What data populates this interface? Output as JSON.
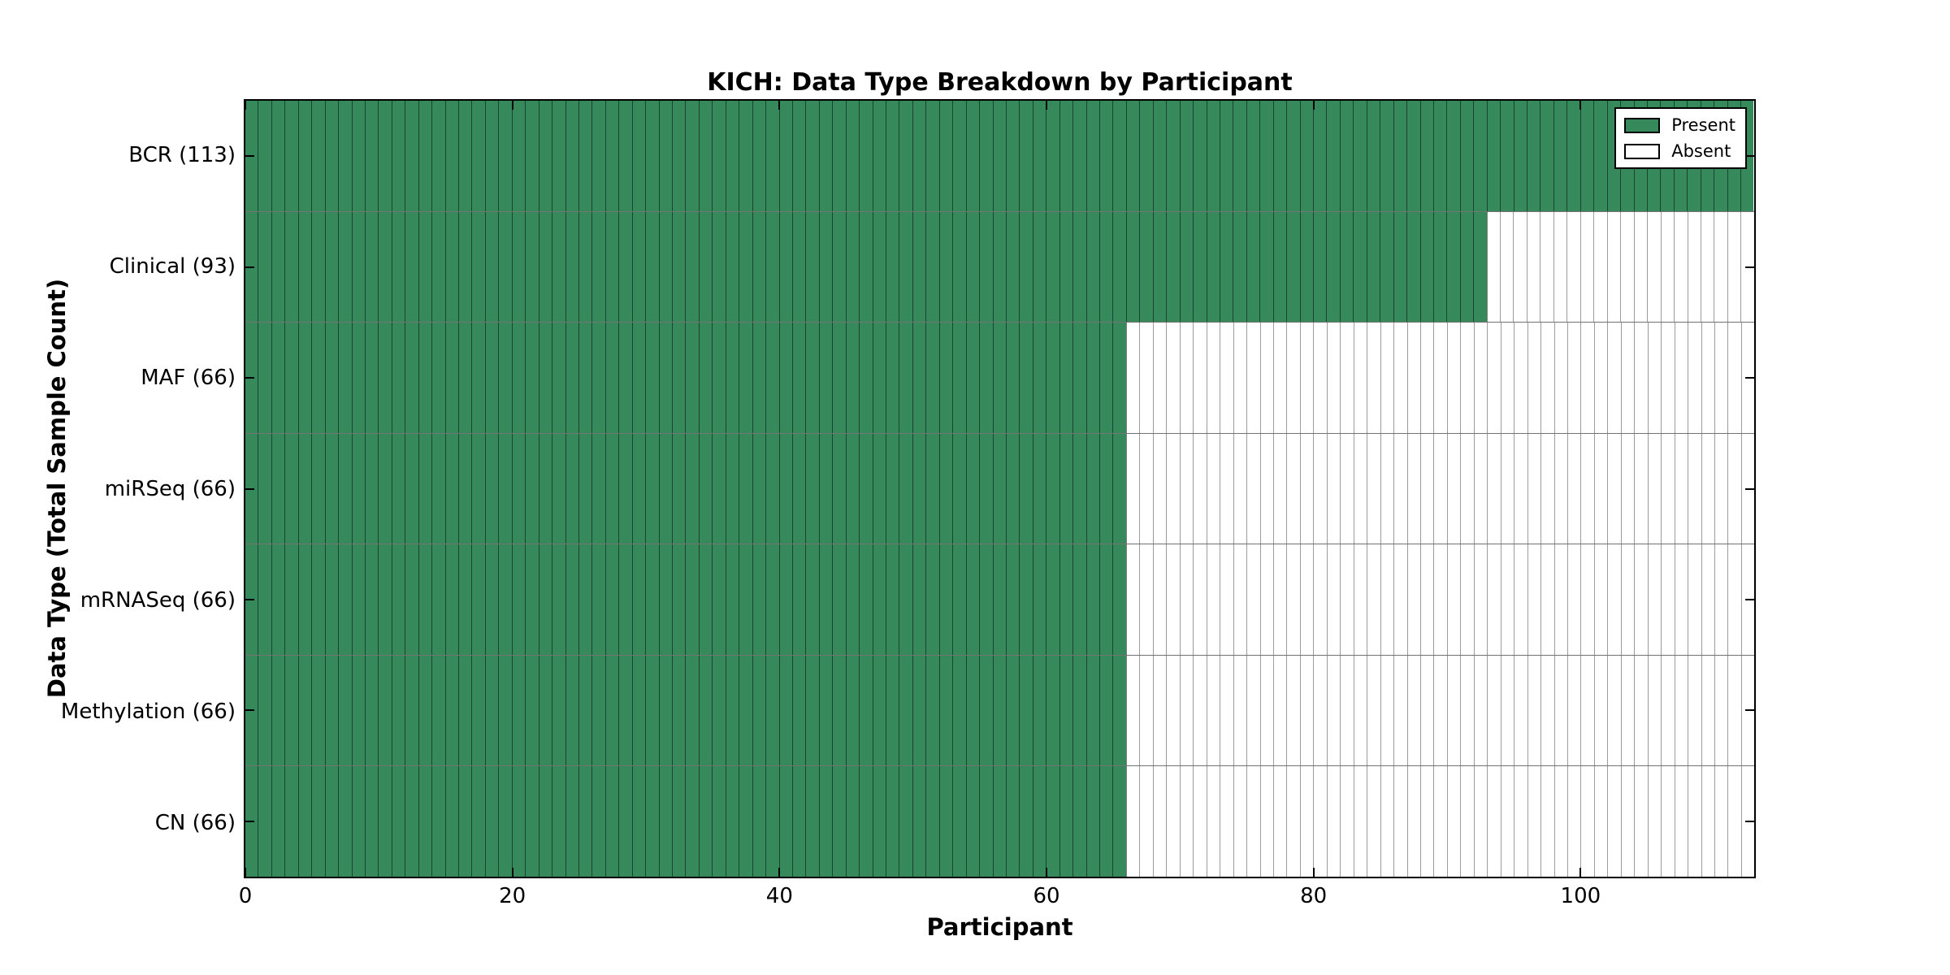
{
  "chart_data": {
    "type": "heatmap",
    "title": "KICH: Data Type Breakdown by Participant",
    "xlabel": "Participant",
    "ylabel": "Data Type (Total Sample Count)",
    "x_ticks": [
      0,
      20,
      40,
      60,
      80,
      100
    ],
    "x_range": [
      0,
      113
    ],
    "total_participants": 113,
    "grid": true,
    "legend_position": "upper right",
    "categories": [
      "BCR (113)",
      "Clinical (93)",
      "MAF (66)",
      "miRSeq (66)",
      "mRNASeq (66)",
      "Methylation (66)",
      "CN (66)"
    ],
    "series": [
      {
        "name": "BCR",
        "label": "BCR (113)",
        "total_samples": 113,
        "present_count": 113,
        "absent_count": 0
      },
      {
        "name": "Clinical",
        "label": "Clinical (93)",
        "total_samples": 93,
        "present_count": 93,
        "absent_count": 20
      },
      {
        "name": "MAF",
        "label": "MAF (66)",
        "total_samples": 66,
        "present_count": 66,
        "absent_count": 47
      },
      {
        "name": "miRSeq",
        "label": "miRSeq (66)",
        "total_samples": 66,
        "present_count": 66,
        "absent_count": 47
      },
      {
        "name": "mRNASeq",
        "label": "mRNASeq (66)",
        "total_samples": 66,
        "present_count": 66,
        "absent_count": 47
      },
      {
        "name": "Methylation",
        "label": "Methylation (66)",
        "total_samples": 66,
        "present_count": 66,
        "absent_count": 47
      },
      {
        "name": "CN",
        "label": "CN (66)",
        "total_samples": 66,
        "present_count": 66,
        "absent_count": 47
      }
    ],
    "legend": {
      "entries": [
        {
          "label": "Present",
          "color": "#35895a"
        },
        {
          "label": "Absent",
          "color": "#ffffff"
        }
      ]
    },
    "colors": {
      "present": "#35895a",
      "absent": "#ffffff",
      "frame": "#000000",
      "grid_on_present": "rgba(0,0,0,0.5)",
      "grid_on_absent": "#9c9c9c"
    }
  }
}
